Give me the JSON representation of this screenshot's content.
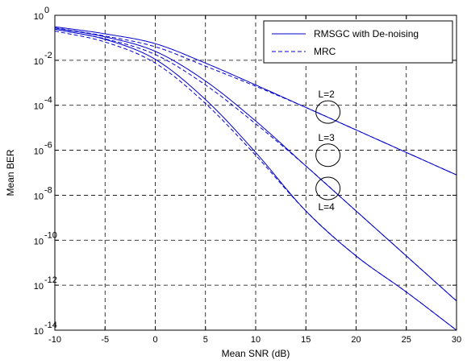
{
  "chart_data": {
    "type": "line",
    "xlabel": "Mean SNR (dB)",
    "ylabel": "Mean BER",
    "x_scale": "linear",
    "y_scale": "log",
    "xlim": [
      -10,
      30
    ],
    "ylim": [
      1e-14,
      1
    ],
    "xticks": [
      "-10",
      "-5",
      "0",
      "5",
      "10",
      "15",
      "20",
      "25",
      "30"
    ],
    "yticks": [
      {
        "base": "10",
        "exp": "0"
      },
      {
        "base": "10",
        "exp": "-2"
      },
      {
        "base": "10",
        "exp": "-4"
      },
      {
        "base": "10",
        "exp": "-6"
      },
      {
        "base": "10",
        "exp": "-8"
      },
      {
        "base": "10",
        "exp": "-10"
      },
      {
        "base": "10",
        "exp": "-12"
      },
      {
        "base": "10",
        "exp": "-14"
      }
    ],
    "grid": true,
    "legend_position": "top-right",
    "legend": [
      {
        "label": "RMSGC with De-noising",
        "style": "solid"
      },
      {
        "label": "MRC",
        "style": "dashed"
      }
    ],
    "color": "#0000cc",
    "x": [
      -10,
      -5,
      0,
      5,
      10,
      15,
      20,
      25,
      30
    ],
    "series": [
      {
        "group": "RMSGC with De-noising",
        "L": 2,
        "style": "solid",
        "values": [
          0.31,
          0.15,
          0.055,
          0.0075,
          0.0008,
          8e-05,
          8e-06,
          8e-07,
          8e-08
        ]
      },
      {
        "group": "RMSGC with De-noising",
        "L": 3,
        "style": "solid",
        "values": [
          0.27,
          0.11,
          0.025,
          0.0012,
          2e-05,
          2e-07,
          2e-09,
          2e-11,
          2e-13
        ]
      },
      {
        "group": "RMSGC with De-noising",
        "L": 4,
        "style": "solid",
        "values": [
          0.24,
          0.085,
          0.011,
          0.00018,
          8e-07,
          2e-09,
          2e-11,
          5e-13,
          1e-14
        ]
      },
      {
        "group": "MRC",
        "L": 2,
        "style": "dashed",
        "values": [
          0.28,
          0.12,
          0.04,
          0.0055,
          0.0007,
          8e-05,
          8e-06,
          8e-07,
          8e-08
        ]
      },
      {
        "group": "MRC",
        "L": 3,
        "style": "dashed",
        "values": [
          0.24,
          0.09,
          0.018,
          0.0008,
          1.5e-05,
          2e-07,
          2e-09,
          2e-11,
          2e-13
        ]
      },
      {
        "group": "MRC",
        "L": 4,
        "style": "dashed",
        "values": [
          0.2,
          0.065,
          0.0075,
          0.00012,
          6e-07,
          2e-09,
          2e-11,
          5e-13,
          1e-14
        ]
      }
    ],
    "annotations": [
      {
        "text": "L=2",
        "x": 17.2,
        "y": 5e-05,
        "label_side": "above"
      },
      {
        "text": "L=3",
        "x": 17.2,
        "y": 6e-07,
        "label_side": "above"
      },
      {
        "text": "L=4",
        "x": 17.2,
        "y": 2e-08,
        "label_side": "below"
      }
    ]
  }
}
